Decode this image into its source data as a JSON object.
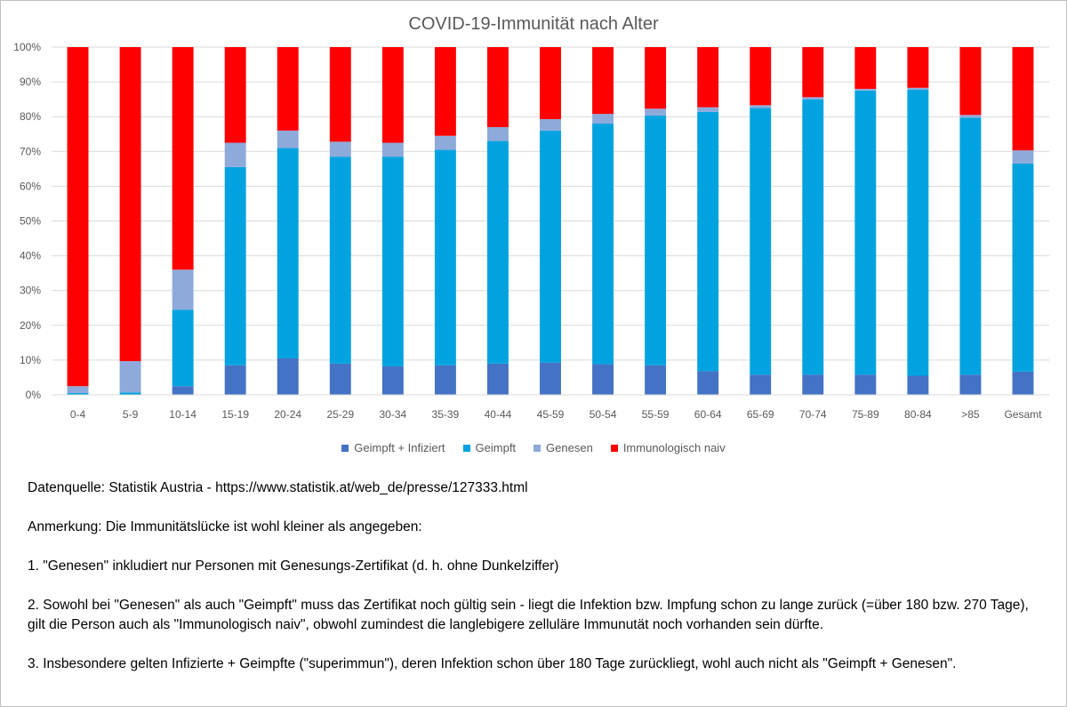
{
  "chart_data": {
    "type": "bar",
    "stacked": true,
    "percent_stacked": true,
    "title": "COVID-19-Immunität nach Alter",
    "categories": [
      "0-4",
      "5-9",
      "10-14",
      "15-19",
      "20-24",
      "25-29",
      "30-34",
      "35-39",
      "40-44",
      "45-59",
      "50-54",
      "55-59",
      "60-64",
      "65-69",
      "70-74",
      "75-89",
      "80-84",
      ">85",
      "Gesamt"
    ],
    "yticks": [
      "0%",
      "10%",
      "20%",
      "30%",
      "40%",
      "50%",
      "60%",
      "70%",
      "80%",
      "90%",
      "100%"
    ],
    "ylim": [
      0,
      100
    ],
    "grid": true,
    "legend_position": "bottom",
    "series": [
      {
        "name": "Geimpft + Infiziert",
        "color": "#4472c4",
        "values": [
          0,
          0,
          2.5,
          8.5,
          10.5,
          9,
          8.2,
          8.5,
          9,
          9.3,
          8.8,
          8.5,
          6.8,
          5.8,
          5.8,
          5.8,
          5.5,
          5.8,
          6.7
        ]
      },
      {
        "name": "Geimpft",
        "color": "#00a3e0",
        "values": [
          0.5,
          0.7,
          22,
          57,
          60.5,
          59.5,
          60.3,
          62,
          64,
          66.7,
          69.2,
          71.8,
          74.6,
          76.7,
          79.2,
          81.7,
          82.3,
          73.9,
          59.8
        ]
      },
      {
        "name": "Genesen",
        "color": "#8eaadb",
        "values": [
          2,
          9,
          11.5,
          7,
          5,
          4.3,
          4,
          4,
          4,
          3.3,
          2.8,
          2,
          1.3,
          0.8,
          0.6,
          0.5,
          0.5,
          0.8,
          3.8
        ]
      },
      {
        "name": "Immunologisch naiv",
        "color": "#ff0000",
        "values": [
          97.5,
          90.3,
          64,
          27.5,
          24,
          27.2,
          27.5,
          25.5,
          23,
          20.7,
          19.2,
          17.7,
          17.3,
          16.7,
          14.4,
          12,
          11.7,
          19.5,
          29.7
        ]
      }
    ]
  },
  "notes": {
    "source": "Datenquelle: Statistik Austria  - https://www.statistik.at/web_de/presse/127333.html",
    "remark": "Anmerkung: Die Immunitätslücke ist wohl kleiner als angegeben:",
    "point1": "1. \"Genesen\" inkludiert nur Personen mit Genesungs-Zertifikat (d. h. ohne Dunkelziffer)",
    "point2": "2. Sowohl bei \"Genesen\" als auch \"Geimpft\" muss das Zertifikat noch gültig sein  - liegt die Infektion bzw. Impfung schon zu lange zurück (=über 180 bzw. 270 Tage), gilt die Person auch als \"Immunologisch naiv\", obwohl zumindest die langlebigere zelluläre Immunutät noch vorhanden sein dürfte.",
    "point3": "3. Insbesondere gelten Infizierte + Geimpfte (\"superimmun\"), deren Infektion schon über 180 Tage zurückliegt, wohl auch nicht als \"Geimpft + Genesen\"."
  }
}
